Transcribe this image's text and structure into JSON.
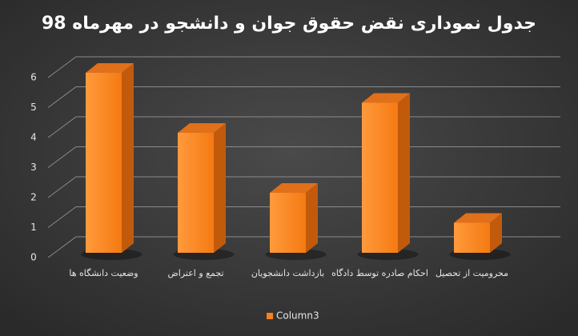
{
  "chart_data": {
    "type": "bar",
    "title": "جدول نموداری نقض حقوق جوان و دانشجو در مهرماه 98",
    "categories": [
      "وضعیت دانشگاه ها",
      "تجمع و اعتراض",
      "بازداشت دانشجویان",
      "احکام صادره توسط دادگاه",
      "محرومیت از تحصیل"
    ],
    "series": [
      {
        "name": "Column3",
        "color": "#f5821f",
        "values": [
          6,
          4,
          2,
          5,
          1
        ]
      }
    ],
    "ylim": [
      0,
      6
    ],
    "yticks": [
      0,
      1,
      2,
      3,
      4,
      5,
      6
    ],
    "grid": true,
    "legend": "bottom"
  }
}
